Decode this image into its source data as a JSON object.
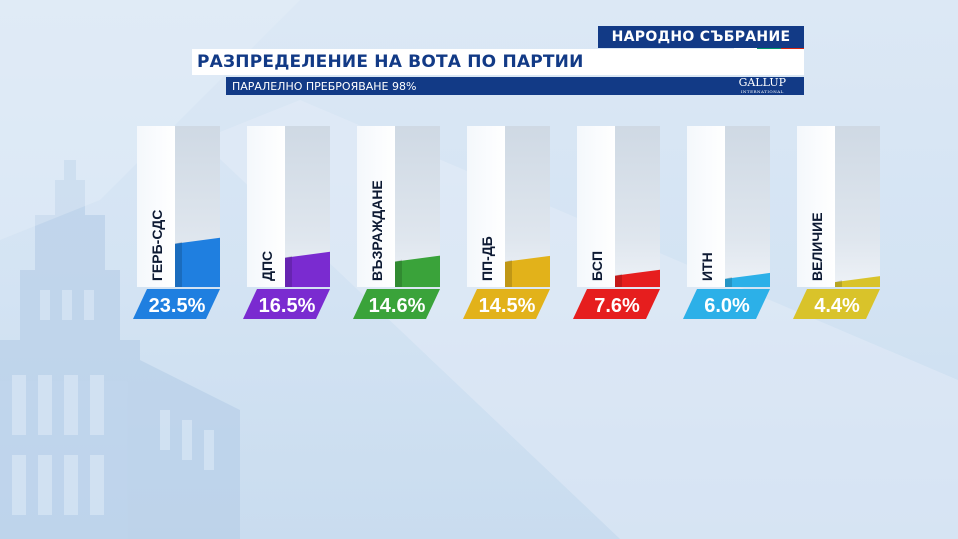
{
  "header": {
    "badge": "НАРОДНО СЪБРАНИЕ",
    "title": "РАЗПРЕДЕЛЕНИЕ НА ВОТА ПО ПАРТИИ",
    "subtitle": "ПАРАЛЕЛНО ПРЕБРОЯВАНЕ 98%",
    "logo": "GALLUP",
    "logo_sub": "INTERNATIONAL",
    "flag_colors": [
      "#ffffff",
      "#00966e",
      "#d62612"
    ]
  },
  "chart_data": {
    "type": "bar",
    "title": "РАЗПРЕДЕЛЕНИЕ НА ВОТА ПО ПАРТИИ",
    "categories": [
      "ГЕРБ-СДС",
      "ДПС",
      "ВЪЗРАЖДАНЕ",
      "ПП-ДБ",
      "БСП",
      "ИТН",
      "ВЕЛИЧИЕ"
    ],
    "values": [
      23.5,
      16.5,
      14.6,
      14.5,
      7.6,
      6.0,
      4.4
    ],
    "value_labels": [
      "23.5%",
      "16.5%",
      "14.6%",
      "14.5%",
      "7.6%",
      "6.0%",
      "4.4%"
    ],
    "colors": [
      "#1f7fe0",
      "#7a2bd0",
      "#3aa33a",
      "#e2b21a",
      "#e61e1e",
      "#2cb0e8",
      "#d9c32a"
    ],
    "ylim": [
      0,
      100
    ],
    "grid": false,
    "legend": "none"
  }
}
